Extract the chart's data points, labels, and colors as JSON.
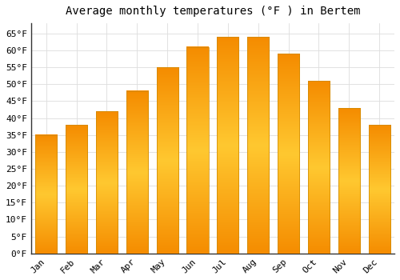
{
  "title": "Average monthly temperatures (°F ) in Bertem",
  "months": [
    "Jan",
    "Feb",
    "Mar",
    "Apr",
    "May",
    "Jun",
    "Jul",
    "Aug",
    "Sep",
    "Oct",
    "Nov",
    "Dec"
  ],
  "values": [
    35,
    38,
    42,
    48,
    55,
    61,
    64,
    64,
    59,
    51,
    43,
    38
  ],
  "bar_color_center": "#FFCF50",
  "bar_color_edge": "#F5A300",
  "background_color": "#FFFFFF",
  "plot_bg_color": "#FFFFFF",
  "grid_color": "#DDDDDD",
  "spine_color": "#333333",
  "ylim": [
    0,
    68
  ],
  "yticks": [
    0,
    5,
    10,
    15,
    20,
    25,
    30,
    35,
    40,
    45,
    50,
    55,
    60,
    65
  ],
  "title_fontsize": 10,
  "tick_fontsize": 8,
  "figsize": [
    5.0,
    3.5
  ],
  "dpi": 100
}
